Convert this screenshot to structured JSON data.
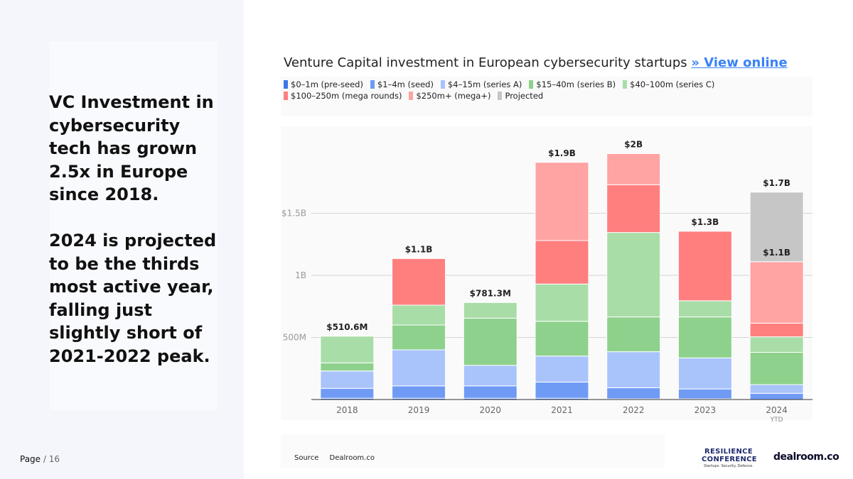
{
  "slide": {
    "headline": "VC Investment in cybersecurity tech has grown 2.5x in Europe since 2018.\n\n2024 is projected to be the thirds most active year, falling just slightly short of 2021-2022 peak.",
    "page_label": "Page",
    "page_total": "/ 16"
  },
  "chart_header": {
    "title": "Venture Capital investment in European cybersecurity startups",
    "link_text": "» View online"
  },
  "footer": {
    "source_label": "Source",
    "source_value": "Dealroom.co",
    "logo_resilience_line1": "RESILIENCE",
    "logo_resilience_line2": "CONFERENCE",
    "logo_resilience_tagline": "Startups. Security. Defence.",
    "logo_dealroom": "dealroom.co"
  },
  "chart_data": {
    "type": "bar",
    "stacked": true,
    "title": "Venture Capital investment in European cybersecurity startups",
    "xlabel": "",
    "ylabel": "",
    "ylim": [
      0,
      2000
    ],
    "grid": true,
    "legend_position": "top",
    "categories": [
      "2018",
      "2019",
      "2020",
      "2021",
      "2022",
      "2023",
      "2024"
    ],
    "category_sublabels": [
      "",
      "",
      "",
      "",
      "",
      "",
      "YTD"
    ],
    "y_ticks": [
      {
        "value": 500,
        "label": "500M"
      },
      {
        "value": 1000,
        "label": "1B"
      },
      {
        "value": 1500,
        "label": "$1.5B"
      }
    ],
    "series": [
      {
        "name": "$0–1m (pre-seed)",
        "color": "#3b78e7",
        "values": [
          10,
          10,
          10,
          10,
          5,
          5,
          0
        ]
      },
      {
        "name": "$1–4m (seed)",
        "color": "#6f9bf5",
        "values": [
          80,
          100,
          100,
          130,
          90,
          80,
          50
        ]
      },
      {
        "name": "$4–15m (series A)",
        "color": "#a9c3fb",
        "values": [
          140,
          290,
          165,
          210,
          290,
          250,
          70
        ]
      },
      {
        "name": "$15–40m (series B)",
        "color": "#8ed18c",
        "values": [
          65,
          200,
          380,
          280,
          280,
          330,
          260
        ]
      },
      {
        "name": "$40–100m (series C)",
        "color": "#a9dda7",
        "values": [
          215,
          160,
          126,
          300,
          680,
          130,
          125
        ]
      },
      {
        "name": "$100–250m (mega rounds)",
        "color": "#ff7f7f",
        "values": [
          0,
          375,
          0,
          350,
          385,
          560,
          110
        ]
      },
      {
        "name": "$250m+ (mega+)",
        "color": "#ffa3a3",
        "values": [
          0,
          0,
          0,
          630,
          250,
          0,
          495
        ]
      },
      {
        "name": "Projected",
        "color": "#c6c6c6",
        "values": [
          0,
          0,
          0,
          0,
          0,
          0,
          560
        ]
      }
    ],
    "totals": [
      {
        "label": "$510.6M",
        "value": 510.6
      },
      {
        "label": "$1.1B",
        "value": 1135
      },
      {
        "label": "$781.3M",
        "value": 781.3
      },
      {
        "label": "$1.9B",
        "value": 1910
      },
      {
        "label": "$2B",
        "value": 1980
      },
      {
        "label": "$1.3B",
        "value": 1355
      },
      {
        "label": "$1.7B",
        "value": 1670
      }
    ],
    "inner_labels": [
      {
        "category": "2024",
        "label": "$1.1B",
        "value": 1110
      }
    ]
  }
}
